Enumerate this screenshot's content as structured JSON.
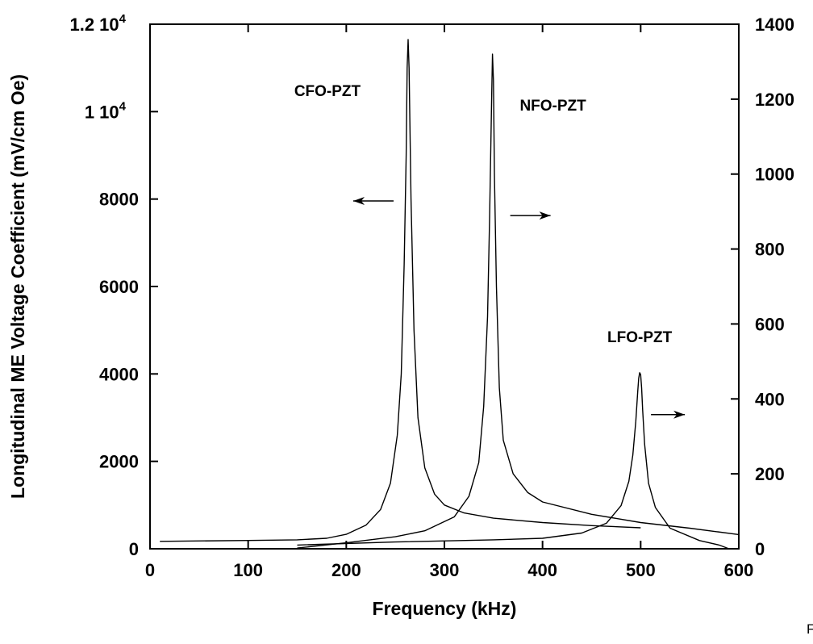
{
  "chart_data": {
    "type": "line",
    "title": "",
    "xlabel": "Frequency (kHz)",
    "ylabel": "Longitudinal ME Voltage Coefficient (mV/cm Oe)",
    "xlim": [
      0,
      600
    ],
    "ylim": [
      0,
      12000
    ],
    "y2lim": [
      0,
      1400
    ],
    "x_ticks": [
      "0",
      "100",
      "200",
      "300",
      "400",
      "500",
      "600"
    ],
    "y_ticks": [
      {
        "base": "0",
        "exp": ""
      },
      {
        "base": "2000",
        "exp": ""
      },
      {
        "base": "4000",
        "exp": ""
      },
      {
        "base": "6000",
        "exp": ""
      },
      {
        "base": "8000",
        "exp": ""
      },
      {
        "base": "1 10",
        "exp": "4"
      },
      {
        "base": "1.2 10",
        "exp": "4"
      }
    ],
    "y2_ticks": [
      "0",
      "200",
      "400",
      "600",
      "800",
      "1000",
      "1200",
      "1400"
    ],
    "grid": false,
    "series": [
      {
        "name": "CFO-PZT",
        "axis": "left",
        "x": [
          10,
          100,
          150,
          180,
          200,
          220,
          235,
          245,
          252,
          256,
          259,
          261,
          262,
          263,
          264,
          266,
          269,
          273,
          280,
          290,
          300,
          320,
          350,
          400,
          450,
          500
        ],
        "y": [
          170,
          190,
          205,
          240,
          330,
          540,
          900,
          1500,
          2600,
          4000,
          6500,
          9000,
          11000,
          11650,
          11000,
          8000,
          5000,
          3000,
          1850,
          1250,
          1000,
          820,
          700,
          600,
          530,
          480
        ]
      },
      {
        "name": "NFO-PZT",
        "axis": "right",
        "x": [
          150,
          200,
          250,
          280,
          310,
          325,
          335,
          340,
          344,
          346,
          348,
          349,
          350,
          351,
          353,
          356,
          360,
          370,
          385,
          400,
          450,
          500,
          550,
          600
        ],
        "y": [
          2,
          16,
          32,
          48,
          85,
          140,
          230,
          380,
          620,
          880,
          1180,
          1320,
          1250,
          1000,
          700,
          430,
          290,
          200,
          150,
          125,
          92,
          70,
          55,
          38
        ]
      },
      {
        "name": "LFO-PZT",
        "axis": "right",
        "x": [
          150,
          250,
          350,
          400,
          440,
          465,
          480,
          488,
          492,
          495,
          497,
          498,
          499,
          500,
          501,
          502,
          504,
          508,
          515,
          530,
          560,
          580,
          590
        ],
        "y": [
          10,
          18,
          24,
          28,
          42,
          68,
          115,
          180,
          250,
          340,
          420,
          455,
          470,
          465,
          430,
          370,
          280,
          175,
          110,
          55,
          22,
          10,
          0
        ]
      }
    ],
    "annotations": [
      {
        "text": "CFO-PZT",
        "arrow": "left"
      },
      {
        "text": "NFO-PZT",
        "arrow": "right"
      },
      {
        "text": "LFO-PZT",
        "arrow": "right"
      }
    ]
  },
  "corner_text": "F"
}
